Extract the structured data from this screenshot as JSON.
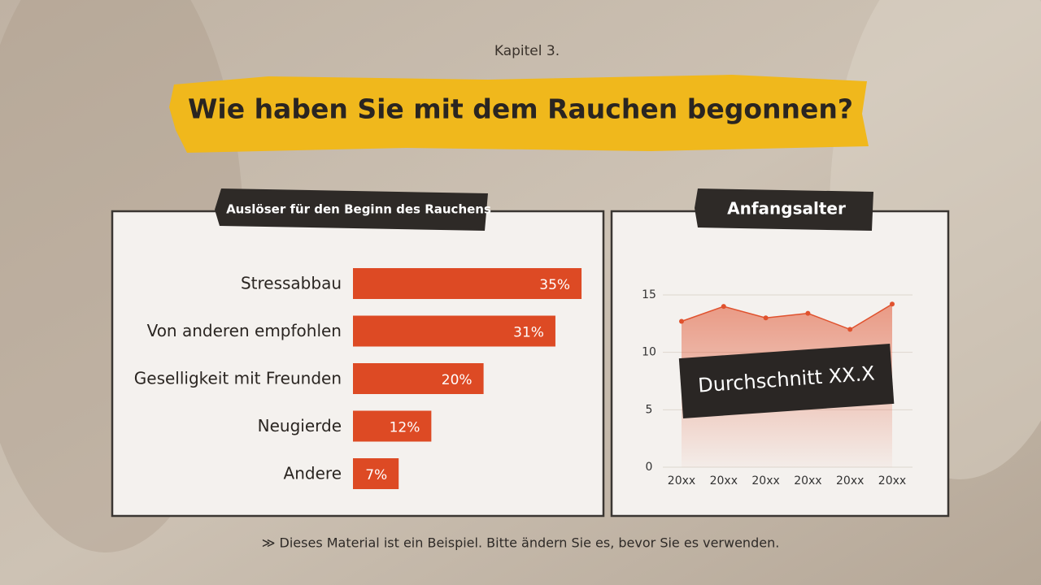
{
  "header": {
    "kicker": "Kapitel 3.",
    "title": "Wie haben Sie mit dem Rauchen begonnen?"
  },
  "chart_data": [
    {
      "type": "bar",
      "orientation": "horizontal",
      "title": "Auslöser für den Beginn des Rauchens",
      "categories": [
        "Stressabbau",
        "Von anderen empfohlen",
        "Geselligkeit mit Freunden",
        "Neugierde",
        "Andere"
      ],
      "values": [
        35,
        31,
        20,
        12,
        7
      ],
      "value_labels": [
        "35%",
        "31%",
        "20%",
        "12%",
        "7%"
      ],
      "color": "#dd4a24"
    },
    {
      "type": "line",
      "title": "Anfangsalter",
      "area": true,
      "categories": [
        "20xx",
        "20xx",
        "20xx",
        "20xx",
        "20xx",
        "20xx"
      ],
      "values": [
        12.7,
        14,
        13,
        13.4,
        12,
        14.2
      ],
      "color": "#e0522e",
      "ylim": [
        0,
        15
      ],
      "yticks": [
        0,
        5,
        10,
        15
      ],
      "grid": true,
      "annotation": "Durchschnitt XX.X"
    }
  ],
  "footer": "≫ Dieses Material ist ein Beispiel. Bitte ändern Sie es, bevor Sie es verwenden."
}
